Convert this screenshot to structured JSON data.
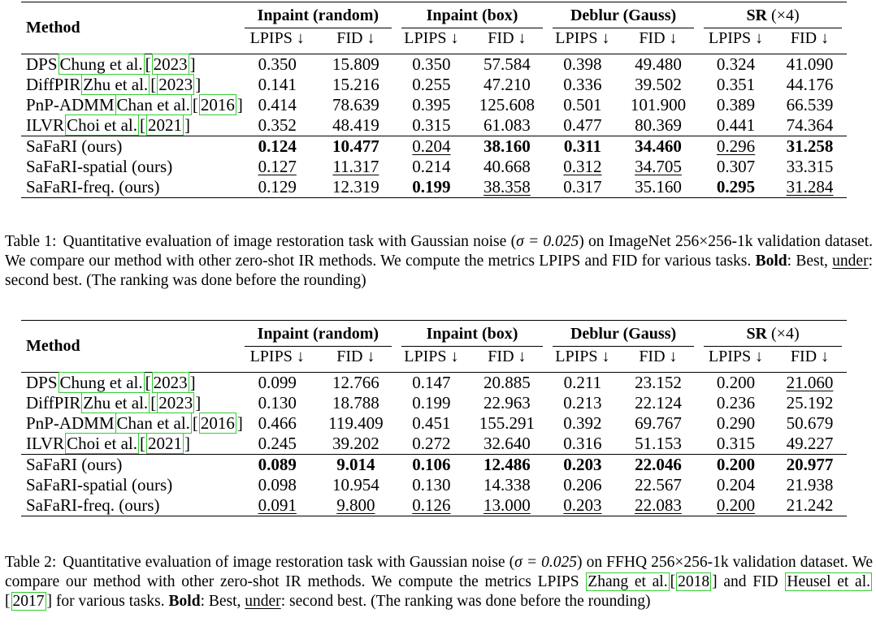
{
  "tables": [
    {
      "columns": {
        "method": "Method",
        "groups": [
          {
            "name": "Inpaint (random)",
            "suffix": ""
          },
          {
            "name": "Inpaint (box)",
            "suffix": ""
          },
          {
            "name": "Deblur (Gauss)",
            "suffix": ""
          },
          {
            "name": "SR",
            "suffix": "(×4)"
          }
        ],
        "sub": [
          "LPIPS ↓",
          "FID ↓"
        ]
      },
      "baselines": [
        {
          "name": "DPS",
          "cite_author": "Chung et al.",
          "cite_year": "2023",
          "values": [
            "0.350",
            "15.809",
            "0.350",
            "57.584",
            "0.398",
            "49.480",
            "0.324",
            "41.090"
          ]
        },
        {
          "name": "DiffPIR",
          "cite_author": "Zhu et al.",
          "cite_year": "2023",
          "values": [
            "0.141",
            "15.216",
            "0.255",
            "47.210",
            "0.336",
            "39.502",
            "0.351",
            "44.176"
          ]
        },
        {
          "name": "PnP-ADMM",
          "cite_author": "Chan et al.",
          "cite_year": "2016",
          "values": [
            "0.414",
            "78.639",
            "0.395",
            "125.608",
            "0.501",
            "101.900",
            "0.389",
            "66.539"
          ]
        },
        {
          "name": "ILVR",
          "cite_author": "Choi et al.",
          "cite_year": "2021",
          "values": [
            "0.352",
            "48.419",
            "0.315",
            "61.083",
            "0.477",
            "80.369",
            "0.441",
            "74.364"
          ]
        }
      ],
      "ours": [
        {
          "name": "SaFaRI (ours)",
          "values": [
            "0.124",
            "10.477",
            "0.204",
            "38.160",
            "0.311",
            "34.460",
            "0.296",
            "31.258"
          ],
          "styles": [
            "b",
            "b",
            "u",
            "b",
            "b",
            "b",
            "u",
            "b"
          ]
        },
        {
          "name": "SaFaRI-spatial (ours)",
          "values": [
            "0.127",
            "11.317",
            "0.214",
            "40.668",
            "0.312",
            "34.705",
            "0.307",
            "33.315"
          ],
          "styles": [
            "u",
            "u",
            "",
            "",
            "u",
            "u",
            "",
            ""
          ]
        },
        {
          "name": "SaFaRI-freq. (ours)",
          "values": [
            "0.129",
            "12.319",
            "0.199",
            "38.358",
            "0.317",
            "35.160",
            "0.295",
            "31.284"
          ],
          "styles": [
            "",
            "",
            "b",
            "u",
            "",
            "",
            "b",
            "u"
          ]
        }
      ]
    },
    {
      "columns": {
        "method": "Method",
        "groups": [
          {
            "name": "Inpaint (random)",
            "suffix": ""
          },
          {
            "name": "Inpaint (box)",
            "suffix": ""
          },
          {
            "name": "Deblur (Gauss)",
            "suffix": ""
          },
          {
            "name": "SR",
            "suffix": "(×4)"
          }
        ],
        "sub": [
          "LPIPS ↓",
          "FID ↓"
        ]
      },
      "baselines": [
        {
          "name": "DPS",
          "cite_author": "Chung et al.",
          "cite_year": "2023",
          "values": [
            "0.099",
            "12.766",
            "0.147",
            "20.885",
            "0.211",
            "23.152",
            "0.200",
            "21.060"
          ],
          "styles": [
            "",
            "",
            "",
            "",
            "",
            "",
            "",
            "u"
          ]
        },
        {
          "name": "DiffPIR",
          "cite_author": "Zhu et al.",
          "cite_year": "2023",
          "values": [
            "0.130",
            "18.788",
            "0.199",
            "22.963",
            "0.213",
            "22.124",
            "0.236",
            "25.192"
          ]
        },
        {
          "name": "PnP-ADMM",
          "cite_author": "Chan et al.",
          "cite_year": "2016",
          "values": [
            "0.466",
            "119.409",
            "0.451",
            "155.291",
            "0.392",
            "69.767",
            "0.290",
            "50.679"
          ]
        },
        {
          "name": "ILVR",
          "cite_author": "Choi et al.",
          "cite_year": "2021",
          "values": [
            "0.245",
            "39.202",
            "0.272",
            "32.640",
            "0.316",
            "51.153",
            "0.315",
            "49.227"
          ]
        }
      ],
      "ours": [
        {
          "name": "SaFaRI (ours)",
          "values": [
            "0.089",
            "9.014",
            "0.106",
            "12.486",
            "0.203",
            "22.046",
            "0.200",
            "20.977"
          ],
          "styles": [
            "b",
            "b",
            "b",
            "b",
            "b",
            "b",
            "b",
            "b"
          ]
        },
        {
          "name": "SaFaRI-spatial (ours)",
          "values": [
            "0.098",
            "10.954",
            "0.130",
            "14.338",
            "0.206",
            "22.567",
            "0.204",
            "21.938"
          ],
          "styles": [
            "",
            "",
            "",
            "",
            "",
            "",
            "",
            ""
          ]
        },
        {
          "name": "SaFaRI-freq. (ours)",
          "values": [
            "0.091",
            "9.800",
            "0.126",
            "13.000",
            "0.203",
            "22.083",
            "0.200",
            "21.242"
          ],
          "styles": [
            "u",
            "u",
            "u",
            "u",
            "u",
            "u",
            "u",
            ""
          ]
        }
      ]
    }
  ],
  "captions": {
    "table1": {
      "label": "Table 1:",
      "text_before": "Quantitative evaluation of image restoration task with Gaussian noise (",
      "sigma": "σ = 0.025",
      "text_mid": ") on ImageNet 256×256-1k validation dataset. We compare our method with other zero-shot IR methods. We compute the metrics LPIPS and FID for various tasks. ",
      "bold_word": "Bold",
      "text_colon": ": Best, ",
      "under_word": "under",
      "text_after": ": second best. (The ranking was done before the rounding)"
    },
    "table2": {
      "label": "Table 2:",
      "text_before": "Quantitative evaluation of image restoration task with Gaussian noise (",
      "sigma": "σ = 0.025",
      "text_mid": ") on FFHQ 256×256-1k validation dataset. We compare our method with other zero-shot IR methods. We compute the metrics LPIPS ",
      "cite1_author": "Zhang et al.",
      "cite1_year": "2018",
      "text_and": " and FID ",
      "cite2_author": "Heusel et al.",
      "cite2_year": "2017",
      "text_tasks": " for various tasks. ",
      "bold_word": "Bold",
      "text_colon": ": Best, ",
      "under_word": "under",
      "text_after": ": second best. (The ranking was done before the rounding)"
    }
  }
}
